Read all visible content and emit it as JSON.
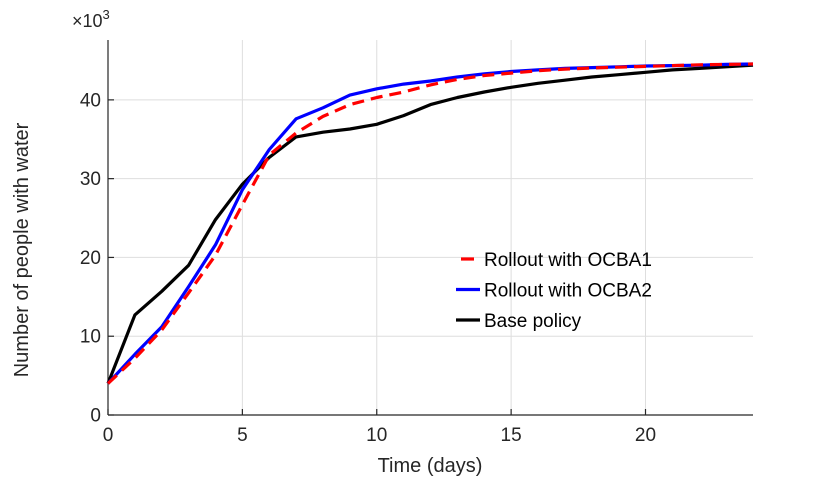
{
  "figure": {
    "background": "#ffffff",
    "axis_color": "#262626",
    "grid_color": "#dedede",
    "tick_label_color": "#262626",
    "legend_text_color": "#000000"
  },
  "chart_data": {
    "type": "line",
    "title": "",
    "xlabel": "Time (days)",
    "ylabel": "Number of people with water",
    "exponent_base": "×10",
    "exponent_power": "3",
    "xlim": [
      0,
      24
    ],
    "ylim": [
      0,
      47.6
    ],
    "xticks": [
      0,
      5,
      10,
      15,
      20
    ],
    "yticks": [
      0,
      10,
      20,
      30,
      40
    ],
    "grid": true,
    "legend_position": "right-middle",
    "x": [
      0,
      1,
      2,
      3,
      4,
      5,
      6,
      7,
      8,
      9,
      10,
      11,
      12,
      13,
      14,
      15,
      16,
      17,
      18,
      19,
      20,
      21,
      22,
      23,
      24
    ],
    "series": [
      {
        "name": "Rollout with OCBA1",
        "color": "#ff0000",
        "style": "dashed",
        "values": [
          4,
          7.2,
          10.8,
          15.5,
          20.3,
          26.7,
          33,
          35.8,
          37.9,
          39.4,
          40.3,
          41,
          41.9,
          42.6,
          43.1,
          43.4,
          43.7,
          43.9,
          44.05,
          44.15,
          44.25,
          44.35,
          44.45,
          44.5,
          44.55
        ]
      },
      {
        "name": "Rollout with OCBA2",
        "color": "#0000ff",
        "style": "solid",
        "values": [
          4,
          7.7,
          11.2,
          16.3,
          21.6,
          28.6,
          33.7,
          37.6,
          39,
          40.6,
          41.4,
          42,
          42.4,
          42.9,
          43.3,
          43.6,
          43.8,
          44,
          44.1,
          44.2,
          44.3,
          44.35,
          44.4,
          44.5,
          44.55
        ]
      },
      {
        "name": "Base policy",
        "color": "#000000",
        "style": "solid",
        "values": [
          4,
          12.7,
          15.7,
          19,
          24.8,
          29.3,
          32.7,
          35.3,
          35.9,
          36.3,
          36.9,
          38,
          39.4,
          40.3,
          41,
          41.6,
          42.1,
          42.5,
          42.9,
          43.2,
          43.5,
          43.8,
          44,
          44.2,
          44.4
        ]
      }
    ]
  }
}
